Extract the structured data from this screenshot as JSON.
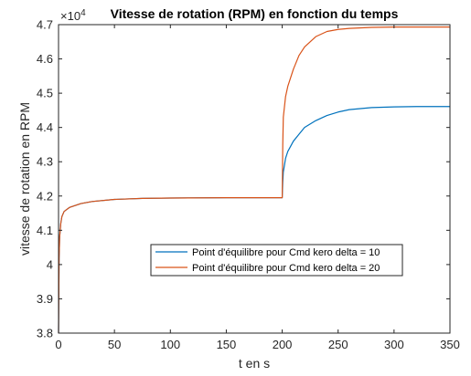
{
  "chart_data": {
    "type": "line",
    "title": "Vitesse de rotation (RPM) en fonction du temps",
    "xlabel": "t en s",
    "ylabel": "vitesse de rotation en RPM",
    "xlim": [
      0,
      350
    ],
    "ylim": [
      3.8,
      4.7
    ],
    "y_exponent_label": "×10",
    "y_exponent_power": "4",
    "x_ticks": [
      "0",
      "50",
      "100",
      "150",
      "200",
      "250",
      "300",
      "350"
    ],
    "y_ticks": [
      "3.8",
      "3.9",
      "4",
      "4.1",
      "4.2",
      "4.3",
      "4.4",
      "4.5",
      "4.6",
      "4.7"
    ],
    "grid": false,
    "legend_position": "center",
    "series": [
      {
        "name": "Point d'équilibre pour Cmd kero delta = 10",
        "color": "#0072BD",
        "x": [
          0,
          0.5,
          1,
          2,
          3,
          5,
          10,
          20,
          30,
          50,
          75,
          100,
          150,
          199.9,
          200,
          200.5,
          201,
          203,
          205,
          210,
          215,
          220,
          230,
          240,
          250,
          260,
          280,
          300,
          320,
          350
        ],
        "y": [
          3.8,
          4.02,
          4.08,
          4.12,
          4.14,
          4.155,
          4.167,
          4.178,
          4.184,
          4.19,
          4.193,
          4.194,
          4.195,
          4.195,
          4.195,
          4.24,
          4.27,
          4.31,
          4.33,
          4.36,
          4.38,
          4.4,
          4.42,
          4.435,
          4.445,
          4.452,
          4.458,
          4.46,
          4.461,
          4.461
        ]
      },
      {
        "name": "Point d'équilibre pour Cmd kero delta = 20",
        "color": "#D95319",
        "x": [
          0,
          0.5,
          1,
          2,
          3,
          5,
          10,
          20,
          30,
          50,
          75,
          100,
          150,
          199.9,
          200,
          200.5,
          201,
          203,
          205,
          210,
          215,
          220,
          230,
          240,
          250,
          260,
          280,
          300,
          320,
          350
        ],
        "y": [
          3.8,
          4.02,
          4.08,
          4.12,
          4.14,
          4.155,
          4.167,
          4.178,
          4.184,
          4.19,
          4.193,
          4.194,
          4.195,
          4.195,
          4.195,
          4.35,
          4.43,
          4.49,
          4.52,
          4.57,
          4.61,
          4.635,
          4.665,
          4.68,
          4.686,
          4.689,
          4.692,
          4.693,
          4.693,
          4.693
        ]
      }
    ]
  }
}
